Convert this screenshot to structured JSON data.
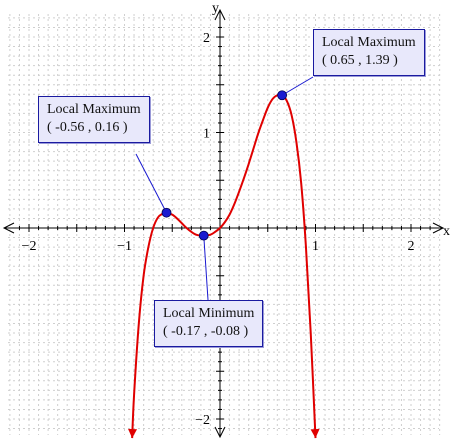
{
  "chart_data": {
    "type": "line",
    "x_axis_label": "x",
    "y_axis_label": "y",
    "x_ticks": [
      {
        "value": -2,
        "label": "−2"
      },
      {
        "value": -1,
        "label": "−1"
      },
      {
        "value": 1,
        "label": "1"
      },
      {
        "value": 2,
        "label": "2"
      }
    ],
    "y_ticks": [
      {
        "value": -2,
        "label": "−2"
      },
      {
        "value": 1,
        "label": "1"
      },
      {
        "value": 2,
        "label": "2"
      }
    ],
    "xlim": [
      -2.3,
      2.4
    ],
    "ylim": [
      -2.3,
      2.4
    ],
    "grid": true,
    "series": [
      {
        "color": "#e00000",
        "x": [
          -0.92,
          -0.9,
          -0.85,
          -0.8,
          -0.75,
          -0.7,
          -0.65,
          -0.6,
          -0.56,
          -0.5,
          -0.45,
          -0.4,
          -0.35,
          -0.3,
          -0.25,
          -0.2,
          -0.17,
          -0.1,
          -0.05,
          0,
          0.05,
          0.1,
          0.15,
          0.2,
          0.25,
          0.3,
          0.35,
          0.4,
          0.45,
          0.5,
          0.55,
          0.6,
          0.65,
          0.7,
          0.75,
          0.8,
          0.85,
          0.9,
          0.95,
          1.0
        ],
        "y": [
          -2.2,
          -1.75,
          -1.0,
          -0.5,
          -0.2,
          0.0,
          0.11,
          0.15,
          0.16,
          0.14,
          0.1,
          0.05,
          0.0,
          -0.04,
          -0.07,
          -0.08,
          -0.08,
          -0.07,
          -0.04,
          0.0,
          0.06,
          0.14,
          0.25,
          0.38,
          0.52,
          0.67,
          0.83,
          0.99,
          1.13,
          1.26,
          1.35,
          1.39,
          1.39,
          1.33,
          1.18,
          0.9,
          0.47,
          -0.2,
          -1.1,
          -2.2
        ]
      }
    ],
    "marked_points": [
      {
        "x": -0.56,
        "y": 0.16,
        "color": "#1a1ad0"
      },
      {
        "x": -0.17,
        "y": -0.08,
        "color": "#1a1ad0"
      },
      {
        "x": 0.65,
        "y": 1.39,
        "color": "#1a1ad0"
      }
    ],
    "annotations": [
      {
        "title": "Local Maximum",
        "coords": "( 0.65 , 1.39 )"
      },
      {
        "title": "Local Maximum",
        "coords": "( -0.56 , 0.16 )"
      },
      {
        "title": "Local Minimum",
        "coords": "( -0.17 , -0.08 )"
      }
    ]
  }
}
